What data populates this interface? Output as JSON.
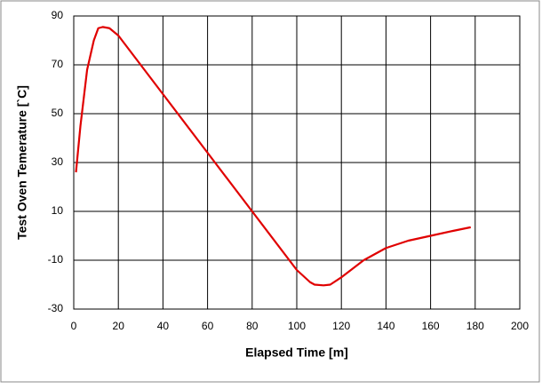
{
  "chart_data": {
    "type": "line",
    "x_label": "Elapsed Time  [m]",
    "y_label": "Test Oven Temerature  [`C]",
    "xlim": [
      0,
      200
    ],
    "xticks": [
      0,
      20,
      40,
      60,
      80,
      100,
      120,
      140,
      160,
      180,
      200
    ],
    "ylim": [
      -30,
      90
    ],
    "yticks": [
      -30,
      -10,
      10,
      30,
      50,
      70,
      90
    ],
    "grid": true,
    "series": [
      {
        "color": "#e00000",
        "x": [
          1,
          3,
          6,
          9,
          11,
          13,
          16,
          20,
          40,
          60,
          80,
          100,
          106,
          108,
          112,
          115,
          120,
          130,
          140,
          150,
          160,
          170,
          178
        ],
        "values": [
          26,
          45,
          68,
          80,
          85,
          85.5,
          85,
          82,
          58,
          34,
          10,
          -14,
          -19,
          -20,
          -20.3,
          -20,
          -17,
          -10,
          -5,
          -2,
          0,
          2,
          3.5
        ]
      }
    ]
  }
}
